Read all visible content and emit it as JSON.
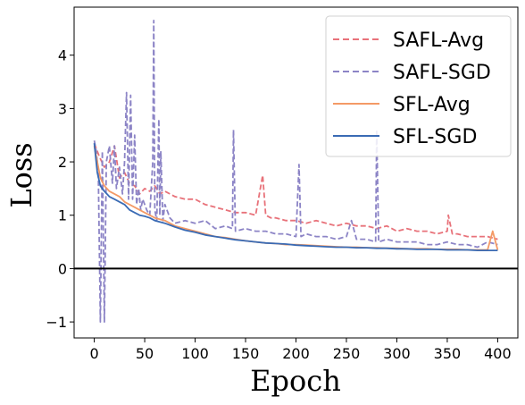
{
  "chart_data": {
    "type": "line",
    "title": "",
    "xlabel": "Epoch",
    "ylabel": "Loss",
    "xlim": [
      -20,
      420
    ],
    "ylim": [
      -1.3,
      4.9
    ],
    "xticks": [
      0,
      50,
      100,
      150,
      200,
      250,
      300,
      350,
      400
    ],
    "yticks": [
      -1,
      0,
      1,
      2,
      3,
      4
    ],
    "grid": false,
    "legend_position": "top-right",
    "hline": 0,
    "series": [
      {
        "name": "SAFL-Avg",
        "color": "#e8727a",
        "dash": "dashed",
        "x": [
          0,
          5,
          10,
          15,
          20,
          25,
          30,
          35,
          40,
          45,
          50,
          55,
          60,
          65,
          70,
          80,
          90,
          100,
          110,
          120,
          130,
          140,
          150,
          160,
          167,
          170,
          175,
          180,
          190,
          200,
          210,
          220,
          230,
          240,
          250,
          260,
          270,
          280,
          290,
          300,
          310,
          320,
          330,
          340,
          350,
          351,
          355,
          360,
          370,
          380,
          390,
          400
        ],
        "y": [
          2.35,
          2.1,
          1.9,
          2.0,
          2.3,
          1.7,
          1.8,
          1.6,
          1.55,
          1.4,
          1.5,
          1.45,
          1.55,
          1.4,
          1.45,
          1.35,
          1.3,
          1.3,
          1.2,
          1.15,
          1.1,
          1.05,
          1.05,
          1.0,
          1.75,
          1.0,
          0.95,
          0.95,
          0.9,
          0.9,
          0.85,
          0.9,
          0.85,
          0.8,
          0.85,
          0.8,
          0.8,
          0.75,
          0.8,
          0.7,
          0.75,
          0.7,
          0.7,
          0.65,
          0.7,
          1.0,
          0.65,
          0.65,
          0.6,
          0.6,
          0.6,
          0.55
        ]
      },
      {
        "name": "SAFL-SGD",
        "color": "#8c84c6",
        "dash": "dashed",
        "x": [
          0,
          2,
          4,
          6,
          8,
          10,
          12,
          15,
          18,
          20,
          22,
          25,
          28,
          30,
          32,
          34,
          36,
          38,
          40,
          42,
          44,
          46,
          48,
          50,
          52,
          55,
          58,
          59,
          60,
          62,
          64,
          65,
          66,
          68,
          70,
          75,
          80,
          90,
          100,
          110,
          120,
          130,
          137,
          138,
          140,
          150,
          160,
          170,
          180,
          190,
          200,
          203,
          205,
          210,
          220,
          230,
          240,
          250,
          255,
          260,
          270,
          279,
          280,
          282,
          290,
          300,
          310,
          320,
          330,
          340,
          350,
          360,
          370,
          380,
          390,
          400
        ],
        "y": [
          2.4,
          2.2,
          1.8,
          -1.0,
          2.2,
          -1.0,
          2.0,
          2.3,
          1.6,
          2.3,
          1.5,
          1.9,
          1.4,
          2.0,
          3.3,
          1.3,
          3.25,
          1.3,
          2.5,
          1.2,
          1.5,
          1.1,
          1.3,
          1.2,
          1.1,
          1.0,
          2.0,
          4.65,
          1.1,
          0.9,
          2.8,
          1.0,
          2.2,
          0.9,
          1.2,
          0.95,
          0.85,
          0.9,
          0.85,
          0.9,
          0.75,
          0.8,
          0.75,
          2.6,
          0.7,
          0.75,
          0.7,
          0.7,
          0.65,
          0.65,
          0.6,
          1.95,
          0.6,
          0.65,
          0.6,
          0.6,
          0.55,
          0.6,
          0.9,
          0.55,
          0.55,
          0.5,
          2.6,
          0.5,
          0.55,
          0.5,
          0.5,
          0.5,
          0.45,
          0.45,
          0.5,
          0.45,
          0.45,
          0.4,
          0.5,
          0.45
        ]
      },
      {
        "name": "SFL-Avg",
        "color": "#f49a66",
        "dash": "solid",
        "x": [
          0,
          3,
          6,
          10,
          15,
          20,
          25,
          30,
          35,
          40,
          45,
          50,
          55,
          60,
          70,
          80,
          90,
          100,
          110,
          120,
          130,
          140,
          150,
          160,
          170,
          180,
          190,
          200,
          210,
          220,
          230,
          240,
          250,
          260,
          270,
          280,
          290,
          300,
          310,
          320,
          330,
          340,
          350,
          360,
          370,
          380,
          390,
          395,
          400
        ],
        "y": [
          2.3,
          2.0,
          1.7,
          1.55,
          1.45,
          1.4,
          1.35,
          1.25,
          1.2,
          1.15,
          1.1,
          1.05,
          1.0,
          0.95,
          0.9,
          0.8,
          0.75,
          0.7,
          0.65,
          0.6,
          0.58,
          0.55,
          0.52,
          0.5,
          0.48,
          0.47,
          0.45,
          0.45,
          0.44,
          0.43,
          0.42,
          0.41,
          0.4,
          0.4,
          0.39,
          0.39,
          0.38,
          0.38,
          0.37,
          0.37,
          0.37,
          0.36,
          0.36,
          0.36,
          0.35,
          0.35,
          0.35,
          0.7,
          0.35
        ]
      },
      {
        "name": "SFL-SGD",
        "color": "#3a6bb4",
        "dash": "solid",
        "x": [
          0,
          3,
          6,
          10,
          15,
          20,
          25,
          30,
          35,
          40,
          45,
          50,
          55,
          60,
          70,
          80,
          90,
          100,
          110,
          120,
          130,
          140,
          150,
          160,
          170,
          180,
          190,
          200,
          210,
          220,
          230,
          240,
          250,
          260,
          270,
          280,
          290,
          300,
          310,
          320,
          330,
          340,
          350,
          360,
          370,
          380,
          390,
          400
        ],
        "y": [
          2.35,
          1.8,
          1.55,
          1.45,
          1.35,
          1.3,
          1.25,
          1.2,
          1.1,
          1.05,
          1.0,
          0.98,
          0.95,
          0.9,
          0.85,
          0.78,
          0.72,
          0.68,
          0.63,
          0.6,
          0.57,
          0.54,
          0.52,
          0.5,
          0.48,
          0.47,
          0.46,
          0.44,
          0.43,
          0.42,
          0.41,
          0.4,
          0.4,
          0.39,
          0.39,
          0.38,
          0.38,
          0.37,
          0.37,
          0.36,
          0.36,
          0.36,
          0.35,
          0.35,
          0.35,
          0.34,
          0.34,
          0.34
        ]
      }
    ]
  }
}
